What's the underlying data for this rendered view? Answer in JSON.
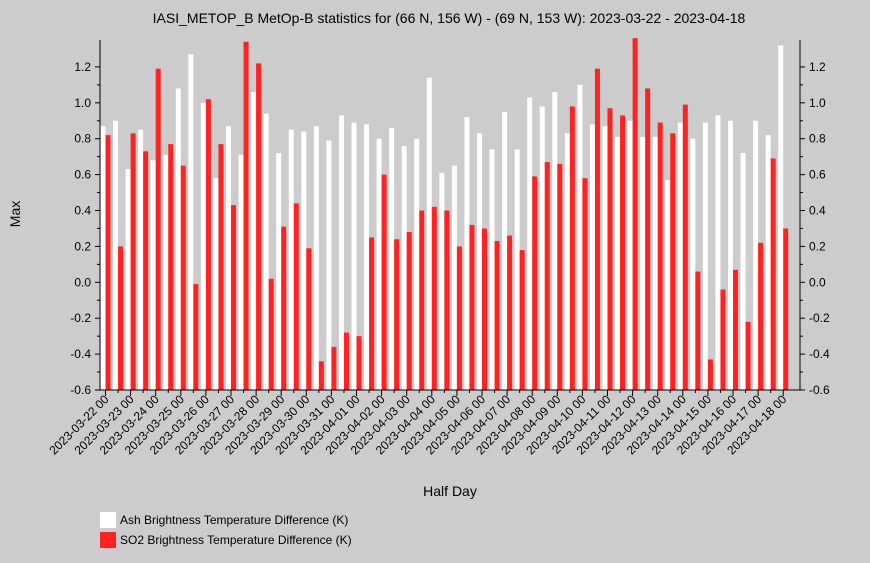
{
  "chart_data": {
    "type": "bar",
    "title": "IASI_METOP_B MetOp-B statistics for (66 N, 156 W) - (69 N, 153 W): 2023-03-22 - 2023-04-18",
    "xlabel": "Half Day",
    "ylabel": "Max",
    "ylim": [
      -0.6,
      1.35
    ],
    "yticks": [
      -0.6,
      -0.4,
      -0.2,
      0.0,
      0.2,
      0.4,
      0.6,
      0.8,
      1.0,
      1.2
    ],
    "ytick_labels": [
      "-0.6",
      "-0.4",
      "-0.2",
      "0.0",
      "0.2",
      "0.4",
      "0.6",
      "0.8",
      "1.0",
      "1.2"
    ],
    "grid": false,
    "legend_position": "bottom-left",
    "x_tick_labels": [
      "2023-03-22 00",
      "2023-03-23 00",
      "2023-03-24 00",
      "2023-03-25 00",
      "2023-03-26 00",
      "2023-03-27 00",
      "2023-03-28 00",
      "2023-03-29 00",
      "2023-03-30 00",
      "2023-03-31 00",
      "2023-04-01 00",
      "2023-04-02 00",
      "2023-04-03 00",
      "2023-04-04 00",
      "2023-04-05 00",
      "2023-04-06 00",
      "2023-04-07 00",
      "2023-04-08 00",
      "2023-04-09 00",
      "2023-04-10 00",
      "2023-04-11 00",
      "2023-04-12 00",
      "2023-04-13 00",
      "2023-04-14 00",
      "2023-04-15 00",
      "2023-04-16 00",
      "2023-04-17 00",
      "2023-04-18 00"
    ],
    "series": [
      {
        "name": "Ash Brightness Temperature Difference (K)",
        "color": "#ffffff",
        "values": [
          0.87,
          0.9,
          0.63,
          0.85,
          0.68,
          0.71,
          1.08,
          1.27,
          1.0,
          0.58,
          0.87,
          0.71,
          1.06,
          0.94,
          0.72,
          0.85,
          0.84,
          0.87,
          0.79,
          0.93,
          0.89,
          0.88,
          0.8,
          0.86,
          0.76,
          0.8,
          1.14,
          0.61,
          0.65,
          0.92,
          0.83,
          0.74,
          0.95,
          0.74,
          1.03,
          0.98,
          1.06,
          0.83,
          1.1,
          0.88,
          0.87,
          0.81,
          0.9,
          0.81,
          0.81,
          0.57,
          0.89,
          0.8,
          0.89,
          0.93,
          0.9,
          0.72,
          0.9,
          0.82,
          1.32
        ]
      },
      {
        "name": "SO2 Brightness Temperature Difference (K)",
        "color": "#ff2222",
        "values": [
          0.82,
          0.2,
          0.83,
          0.73,
          1.19,
          0.77,
          0.65,
          -0.01,
          1.02,
          0.77,
          0.43,
          1.34,
          1.22,
          0.02,
          0.31,
          0.44,
          0.19,
          -0.44,
          -0.36,
          -0.28,
          -0.3,
          0.25,
          0.6,
          0.24,
          0.28,
          0.4,
          0.42,
          0.4,
          0.2,
          0.32,
          0.3,
          0.23,
          0.26,
          0.18,
          0.59,
          0.67,
          0.66,
          0.98,
          0.58,
          1.19,
          0.97,
          0.93,
          1.36,
          1.08,
          0.89,
          0.83,
          0.99,
          0.06,
          -0.43,
          -0.04,
          0.07,
          -0.22,
          0.22,
          0.69,
          0.3
        ]
      }
    ]
  }
}
